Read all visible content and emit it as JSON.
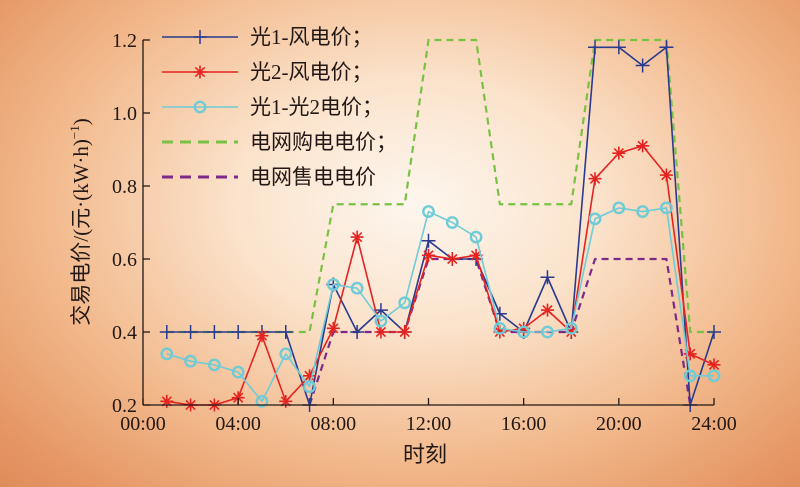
{
  "chart_data": {
    "type": "line",
    "title": "",
    "xlabel": "时刻",
    "ylabel": "交易电价/(元·(kW·h)",
    "ylabel_sup": "−1",
    "ylabel_close": ")",
    "xlim": [
      0,
      24
    ],
    "ylim": [
      0.2,
      1.2
    ],
    "x_ticks": [
      0,
      4,
      8,
      12,
      16,
      20,
      24
    ],
    "x_tick_labels": [
      "00:00",
      "04:00",
      "08:00",
      "12:00",
      "16:00",
      "20:00",
      "24:00"
    ],
    "y_ticks": [
      0.2,
      0.4,
      0.6,
      0.8,
      1.0,
      1.2
    ],
    "y_tick_labels": [
      "0.2",
      "0.4",
      "0.6",
      "0.8",
      "1.0",
      "1.2"
    ],
    "grid": false,
    "legend_position": "top-left",
    "series": [
      {
        "name": "光1-风电价；",
        "color": "#2a3a8e",
        "style": "solid",
        "marker": "plus",
        "x": [
          1,
          2,
          3,
          4,
          5,
          6,
          7,
          8,
          9,
          10,
          11,
          12,
          13,
          14,
          15,
          16,
          17,
          18,
          19,
          20,
          21,
          22,
          23,
          24
        ],
        "values": [
          0.4,
          0.4,
          0.4,
          0.4,
          0.4,
          0.4,
          0.2,
          0.53,
          0.4,
          0.46,
          0.4,
          0.65,
          0.6,
          0.6,
          0.45,
          0.4,
          0.55,
          0.4,
          1.18,
          1.18,
          1.13,
          1.18,
          0.2,
          0.4
        ]
      },
      {
        "name": "光2-风电价；",
        "color": "#e52421",
        "style": "solid",
        "marker": "star",
        "x": [
          1,
          2,
          3,
          4,
          5,
          6,
          7,
          8,
          9,
          10,
          11,
          12,
          13,
          14,
          15,
          16,
          17,
          18,
          19,
          20,
          21,
          22,
          23,
          24
        ],
        "values": [
          0.21,
          0.2,
          0.2,
          0.22,
          0.39,
          0.21,
          0.28,
          0.41,
          0.66,
          0.4,
          0.4,
          0.61,
          0.6,
          0.61,
          0.4,
          0.41,
          0.46,
          0.4,
          0.82,
          0.89,
          0.91,
          0.83,
          0.34,
          0.31
        ]
      },
      {
        "name": "光1-光2电价；",
        "color": "#6fcbd6",
        "style": "solid",
        "marker": "circle",
        "x": [
          1,
          2,
          3,
          4,
          5,
          6,
          7,
          8,
          9,
          10,
          11,
          12,
          13,
          14,
          15,
          16,
          17,
          18,
          19,
          20,
          21,
          22,
          23,
          24
        ],
        "values": [
          0.34,
          0.32,
          0.31,
          0.29,
          0.21,
          0.34,
          0.25,
          0.53,
          0.52,
          0.43,
          0.48,
          0.73,
          0.7,
          0.66,
          0.41,
          0.4,
          0.4,
          0.41,
          0.71,
          0.74,
          0.73,
          0.74,
          0.28,
          0.28
        ]
      },
      {
        "name": "电网购电电价；",
        "color": "#79c143",
        "style": "dashed",
        "marker": "none",
        "x": [
          1,
          7,
          8,
          11,
          12,
          14,
          15,
          18,
          19,
          22,
          23,
          24
        ],
        "values": [
          0.4,
          0.4,
          0.75,
          0.75,
          1.2,
          1.2,
          0.75,
          0.75,
          1.2,
          1.2,
          0.4,
          0.4
        ]
      },
      {
        "name": "电网售电电价",
        "color": "#7b2a89",
        "style": "dashed",
        "marker": "none",
        "x": [
          7,
          8,
          11,
          12,
          14,
          15,
          18,
          19,
          22,
          23
        ],
        "values": [
          0.2,
          0.4,
          0.4,
          0.6,
          0.6,
          0.4,
          0.4,
          0.6,
          0.6,
          0.2
        ]
      }
    ]
  }
}
